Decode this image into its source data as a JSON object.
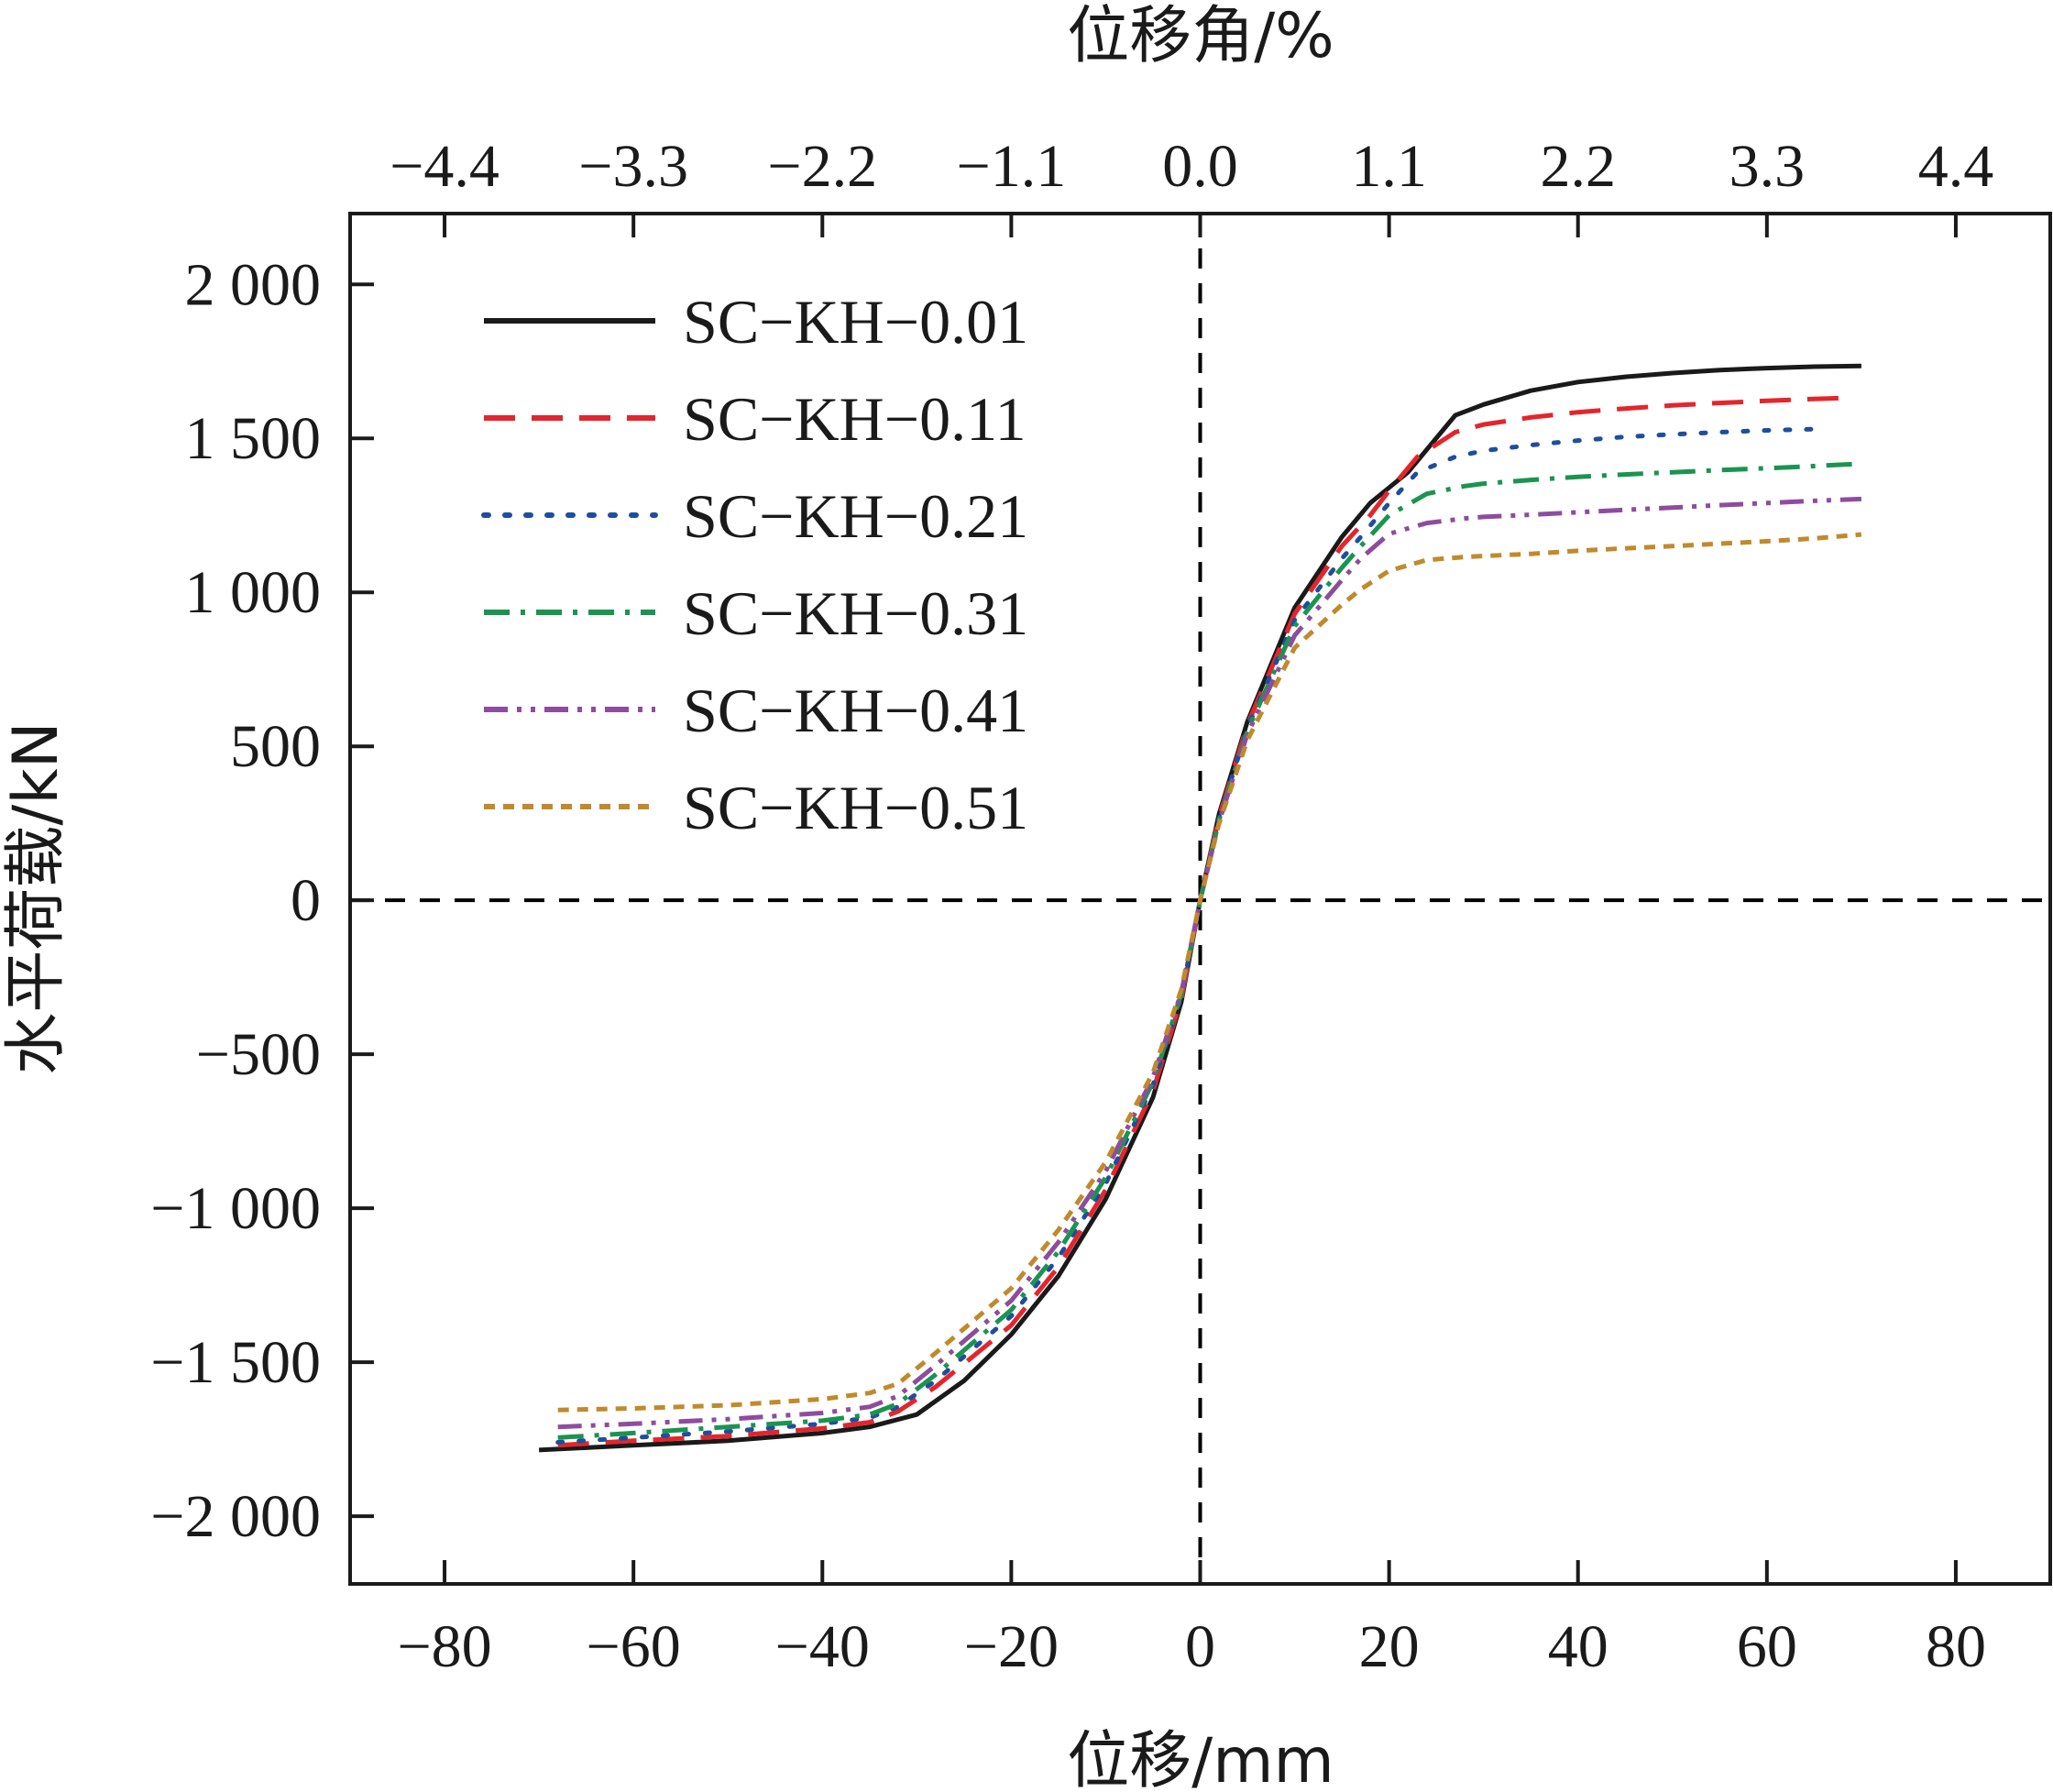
{
  "chart_data": {
    "type": "line",
    "xlabel": "位移/mm",
    "x2label": "位移角/%",
    "ylabel": "水平荷载/kN",
    "xlim": [
      -90,
      90
    ],
    "ylim": [
      -2220,
      2230
    ],
    "x_ticks": [
      {
        "value": -80,
        "label": "−80"
      },
      {
        "value": -60,
        "label": "−60"
      },
      {
        "value": -40,
        "label": "−40"
      },
      {
        "value": -20,
        "label": "−20"
      },
      {
        "value": 0,
        "label": "0"
      },
      {
        "value": 20,
        "label": "20"
      },
      {
        "value": 40,
        "label": "40"
      },
      {
        "value": 60,
        "label": "60"
      },
      {
        "value": 80,
        "label": "80"
      }
    ],
    "x2_ticks": [
      {
        "value": -4.4,
        "label": "−4.4"
      },
      {
        "value": -3.3,
        "label": "−3.3"
      },
      {
        "value": -2.2,
        "label": "−2.2"
      },
      {
        "value": -1.1,
        "label": "−1.1"
      },
      {
        "value": 0.0,
        "label": "0.0"
      },
      {
        "value": 1.1,
        "label": "1.1"
      },
      {
        "value": 2.2,
        "label": "2.2"
      },
      {
        "value": 3.3,
        "label": "3.3"
      },
      {
        "value": 4.4,
        "label": "4.4"
      }
    ],
    "y_ticks": [
      {
        "value": 2000,
        "label": "2 000"
      },
      {
        "value": 1500,
        "label": "1 500"
      },
      {
        "value": 1000,
        "label": "1 000"
      },
      {
        "value": 500,
        "label": "500"
      },
      {
        "value": 0,
        "label": "0"
      },
      {
        "value": -500,
        "label": "−500"
      },
      {
        "value": -1000,
        "label": "−1 000"
      },
      {
        "value": -1500,
        "label": "−1 500"
      },
      {
        "value": -2000,
        "label": "−2 000"
      }
    ],
    "reference_lines": {
      "x": 0,
      "y": 0,
      "style": "dashed",
      "color": "#000000"
    },
    "legend_position": "top-left",
    "series": [
      {
        "name": "SC−KH−0.01",
        "color": "#1a1a1a",
        "dash": "solid",
        "x": [
          -70,
          -60,
          -50,
          -40,
          -35,
          -30,
          -25,
          -20,
          -15,
          -10,
          -5,
          -2,
          0,
          2,
          5,
          10,
          15,
          18,
          20,
          22,
          27,
          30,
          35,
          40,
          45,
          50,
          55,
          60,
          65,
          70
        ],
        "y": [
          -1785,
          -1770,
          -1755,
          -1730,
          -1710,
          -1670,
          -1560,
          -1410,
          -1220,
          -970,
          -640,
          -330,
          0,
          280,
          580,
          950,
          1180,
          1290,
          1340,
          1390,
          1575,
          1610,
          1655,
          1683,
          1700,
          1712,
          1722,
          1728,
          1733,
          1735
        ]
      },
      {
        "name": "SC−KH−0.11",
        "color": "#e4252c",
        "dash": "long-dash",
        "x": [
          -68,
          -60,
          -50,
          -40,
          -35,
          -32,
          -28,
          -20,
          -15,
          -10,
          -5,
          -2,
          0,
          2,
          5,
          10,
          15,
          18,
          20,
          23,
          27,
          30,
          35,
          40,
          45,
          50,
          55,
          60,
          65,
          68
        ],
        "y": [
          -1770,
          -1755,
          -1740,
          -1715,
          -1695,
          -1660,
          -1580,
          -1380,
          -1190,
          -940,
          -620,
          -320,
          0,
          270,
          570,
          930,
          1150,
          1250,
          1330,
          1440,
          1520,
          1545,
          1568,
          1585,
          1597,
          1607,
          1615,
          1622,
          1628,
          1631
        ]
      },
      {
        "name": "SC−KH−0.21",
        "color": "#1f4e9c",
        "dash": "dotted",
        "x": [
          -68,
          -60,
          -50,
          -40,
          -35,
          -32,
          -28,
          -20,
          -15,
          -10,
          -5,
          -2,
          0,
          2,
          5,
          10,
          15,
          17,
          20,
          23,
          27,
          30,
          35,
          40,
          45,
          50,
          55,
          60,
          65
        ],
        "y": [
          -1760,
          -1745,
          -1725,
          -1700,
          -1680,
          -1645,
          -1560,
          -1350,
          -1160,
          -920,
          -600,
          -310,
          0,
          265,
          560,
          910,
          1110,
          1180,
          1290,
          1390,
          1440,
          1460,
          1478,
          1493,
          1505,
          1513,
          1520,
          1526,
          1530
        ]
      },
      {
        "name": "SC−KH−0.31",
        "color": "#1a9450",
        "dash": "dash-dot",
        "x": [
          -68,
          -60,
          -50,
          -40,
          -35,
          -32,
          -28,
          -20,
          -15,
          -10,
          -5,
          -2,
          0,
          2,
          5,
          10,
          15,
          17,
          20,
          24,
          28,
          30,
          35,
          40,
          45,
          50,
          55,
          60,
          65,
          70
        ],
        "y": [
          -1745,
          -1730,
          -1710,
          -1690,
          -1670,
          -1635,
          -1540,
          -1330,
          -1140,
          -900,
          -590,
          -305,
          0,
          260,
          550,
          890,
          1080,
          1150,
          1250,
          1320,
          1345,
          1353,
          1365,
          1375,
          1383,
          1390,
          1397,
          1403,
          1410,
          1418
        ]
      },
      {
        "name": "SC−KH−0.41",
        "color": "#8e4c9e",
        "dash": "dash-dot-dot",
        "x": [
          -68,
          -60,
          -50,
          -40,
          -35,
          -32,
          -28,
          -20,
          -15,
          -10,
          -5,
          -2,
          0,
          2,
          5,
          10,
          15,
          17,
          20,
          24,
          28,
          30,
          35,
          40,
          45,
          50,
          55,
          60,
          65,
          70
        ],
        "y": [
          -1710,
          -1700,
          -1685,
          -1665,
          -1645,
          -1610,
          -1510,
          -1300,
          -1110,
          -880,
          -575,
          -300,
          0,
          255,
          540,
          860,
          1040,
          1110,
          1190,
          1225,
          1240,
          1245,
          1252,
          1260,
          1268,
          1275,
          1283,
          1290,
          1297,
          1303
        ]
      },
      {
        "name": "SC−KH−0.51",
        "color": "#c08a2c",
        "dash": "short-dash",
        "x": [
          -68,
          -60,
          -50,
          -40,
          -35,
          -32,
          -28,
          -20,
          -15,
          -10,
          -5,
          -2,
          0,
          2,
          5,
          10,
          15,
          17,
          20,
          24,
          28,
          30,
          35,
          40,
          45,
          50,
          55,
          60,
          65,
          70
        ],
        "y": [
          -1655,
          -1650,
          -1640,
          -1620,
          -1600,
          -1570,
          -1470,
          -1260,
          -1070,
          -850,
          -560,
          -290,
          0,
          250,
          520,
          820,
          960,
          1010,
          1070,
          1105,
          1115,
          1118,
          1125,
          1135,
          1143,
          1150,
          1158,
          1166,
          1175,
          1188
        ]
      }
    ]
  }
}
